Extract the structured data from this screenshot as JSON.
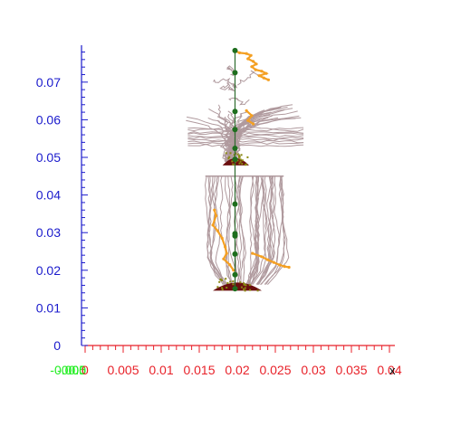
{
  "chart_data": {
    "type": "scatter",
    "title": "",
    "xlabel": "x",
    "ylabel": "",
    "xlim": [
      0,
      0.04
    ],
    "ylim": [
      0,
      0.075
    ],
    "x_ticks": [
      "0",
      "0.005",
      "0.01",
      "0.015",
      "0.02",
      "0.025",
      "0.03",
      "0.035",
      "0.04"
    ],
    "y_ticks": [
      "0",
      "0.01",
      "0.02",
      "0.03",
      "0.04",
      "0.05",
      "0.06",
      "0.07"
    ],
    "origin_overlap_labels": [
      "-0.005",
      "-0.01",
      "0.0"
    ],
    "colors": {
      "x_axis": "#e8222a",
      "y_axis": "#1a1acc",
      "origin_labels": "#22ee22",
      "traces": "#b09a9e",
      "orange_traces": "#f4a023",
      "centerline": "#2e6b2e",
      "markers": "#1e6e1e",
      "deposit_dark": "#6b0f0f",
      "deposit_olive": "#8a8a10"
    },
    "centerline": {
      "x": 0.0197,
      "y_range": [
        0.0148,
        0.0784
      ]
    },
    "series": [
      {
        "role": "centerline-points",
        "points": [
          [
            0.0197,
            0.0784
          ],
          [
            0.0197,
            0.0725
          ],
          [
            0.0197,
            0.0622
          ],
          [
            0.0197,
            0.0574
          ],
          [
            0.0197,
            0.0524
          ],
          [
            0.0197,
            0.0495
          ],
          [
            0.0197,
            0.0376
          ],
          [
            0.0197,
            0.0297
          ],
          [
            0.0197,
            0.0291
          ],
          [
            0.0197,
            0.0243
          ],
          [
            0.0197,
            0.0188
          ],
          [
            0.0197,
            0.0151
          ]
        ]
      },
      {
        "role": "orange-path-top",
        "points": [
          [
            0.0196,
            0.0784
          ],
          [
            0.0203,
            0.0778
          ],
          [
            0.0212,
            0.0776
          ],
          [
            0.0218,
            0.0771
          ],
          [
            0.0214,
            0.0762
          ],
          [
            0.0221,
            0.0755
          ],
          [
            0.0225,
            0.0748
          ],
          [
            0.0219,
            0.0741
          ],
          [
            0.0224,
            0.0733
          ],
          [
            0.0232,
            0.0729
          ],
          [
            0.0238,
            0.0723
          ],
          [
            0.0229,
            0.0717
          ],
          [
            0.0235,
            0.0711
          ],
          [
            0.0241,
            0.0706
          ]
        ]
      },
      {
        "role": "orange-path-upper-bowl",
        "points": [
          [
            0.0212,
            0.0624
          ],
          [
            0.0219,
            0.0611
          ],
          [
            0.0214,
            0.0598
          ],
          [
            0.0221,
            0.0589
          ]
        ]
      },
      {
        "role": "orange-path-left",
        "points": [
          [
            0.017,
            0.036
          ],
          [
            0.0172,
            0.0345
          ],
          [
            0.0168,
            0.032
          ],
          [
            0.0174,
            0.0305
          ],
          [
            0.018,
            0.0285
          ],
          [
            0.0184,
            0.0262
          ],
          [
            0.0186,
            0.0245
          ],
          [
            0.0182,
            0.023
          ],
          [
            0.019,
            0.0215
          ],
          [
            0.0195,
            0.02
          ]
        ]
      },
      {
        "role": "orange-path-right",
        "points": [
          [
            0.022,
            0.0245
          ],
          [
            0.0232,
            0.0236
          ],
          [
            0.024,
            0.0228
          ],
          [
            0.0248,
            0.0221
          ],
          [
            0.0256,
            0.0214
          ],
          [
            0.0262,
            0.021
          ],
          [
            0.0268,
            0.0208
          ]
        ]
      }
    ]
  }
}
